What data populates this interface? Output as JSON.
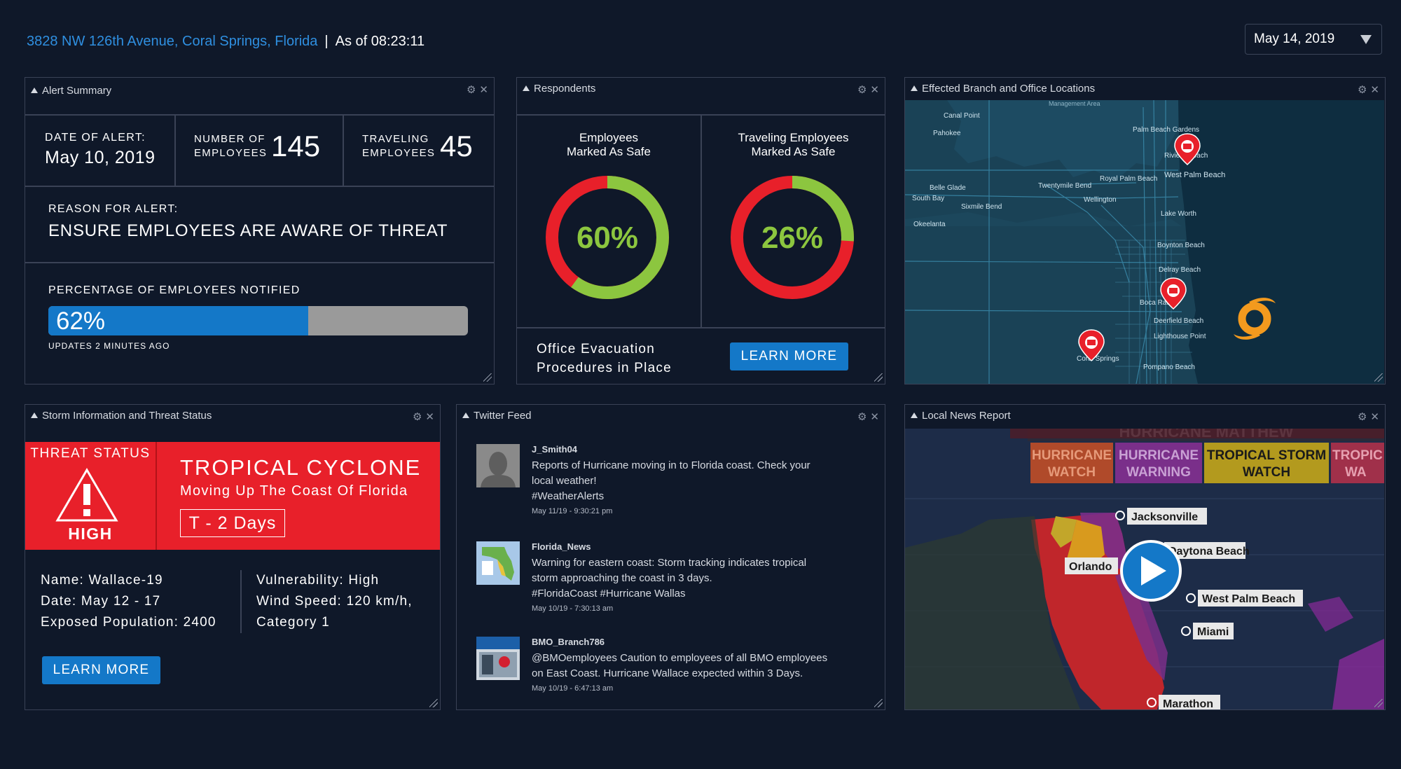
{
  "header": {
    "address": "3828 NW 126th Avenue, Coral Springs, Florida",
    "separator": "|",
    "as_of": "As of 08:23:11",
    "date_value": "May 14, 2019"
  },
  "alert_summary": {
    "title": "Alert Summary",
    "date_label": "DATE OF ALERT:",
    "date_value": "May 10, 2019",
    "employees_label_1": "NUMBER OF",
    "employees_label_2": "EMPLOYEES",
    "employees_value": "145",
    "traveling_label_1": "TRAVELING",
    "traveling_label_2": "EMPLOYEES",
    "traveling_value": "45",
    "reason_label": "REASON FOR ALERT:",
    "reason_value": "ENSURE EMPLOYEES ARE AWARE OF THREAT",
    "notified_label": "PERCENTAGE OF EMPLOYEES NOTIFIED",
    "notified_text": "62%",
    "notified_fraction": 0.62,
    "updated_text": "UPDATES 2 MINUTES AGO"
  },
  "respondents": {
    "title": "Respondents",
    "left_label_1": "Employees",
    "left_label_2": "Marked As Safe",
    "left_text": "60%",
    "left_fraction": 0.6,
    "right_label_1": "Traveling Employees",
    "right_label_2": "Marked As Safe",
    "right_text": "26%",
    "right_fraction": 0.26,
    "procedures_1": "Office Evacuation",
    "procedures_2": "Procedures in Place",
    "learn_more": "LEARN MORE"
  },
  "map_panel": {
    "title": "Effected Branch and Office Locations",
    "places": [
      "Canal Point",
      "Pahokee",
      "Palm Beach Gardens",
      "Riviera Beach",
      "West Palm Beach",
      "Royal Palm Beach",
      "Belle Glade",
      "Twentymile Bend",
      "Wellington",
      "South Bay",
      "Sixmile Bend",
      "Lake Worth",
      "Okeelanta",
      "Boynton Beach",
      "Delray Beach",
      "Boca Raton",
      "Deerfield Beach",
      "Lighthouse Point",
      "Coral Springs",
      "Pompano Beach",
      "Management Area"
    ]
  },
  "storm": {
    "title": "Storm Information and Threat Status",
    "threat_status": "THREAT STATUS",
    "level": "HIGH",
    "type": "TROPICAL CYCLONE",
    "subtitle": "Moving Up The Coast Of Florida",
    "countdown": "T - 2 Days",
    "name": "Name: Wallace-19",
    "date": "Date: May 12 - 17",
    "population": "Exposed Population: 2400",
    "vulnerability": "Vulnerability: High",
    "wind": "Wind Speed: 120 km/h,",
    "category": "Category 1",
    "learn_more": "LEARN MORE"
  },
  "twitter": {
    "title": "Twitter Feed",
    "tweets": [
      {
        "user": "J_Smith04",
        "line1": "Reports of Hurricane moving in to Florida coast. Check your",
        "line2": "local weather!",
        "line3": "#WeatherAlerts",
        "time": "May 11/19 - 9:30:21 pm"
      },
      {
        "user": "Florida_News",
        "line1": "Warning for eastern coast: Storm tracking indicates tropical",
        "line2": "storm approaching the coast in 3 days.",
        "line3": "#FloridaCoast #Hurricane Wallas",
        "time": "May 10/19 - 7:30:13 am"
      },
      {
        "user": "BMO_Branch786",
        "line1": "@BMOemployees Caution to employees of all BMO employees",
        "line2": "on East Coast. Hurricane Wallace expected within 3 Days.",
        "line3": "",
        "time": "May 10/19 - 6:47:13 am"
      }
    ]
  },
  "news": {
    "title": "Local News Report",
    "banner": "HURRICANE MATTHEW",
    "legend": [
      {
        "line1": "HURRICANE",
        "line2": "WATCH",
        "color": "#b04a2a",
        "text_color": "#e69a7a"
      },
      {
        "line1": "HURRICANE",
        "line2": "WARNING",
        "color": "#7a2f8a",
        "text_color": "#c9a1d4"
      },
      {
        "line1": "TROPICAL STORM",
        "line2": "WATCH",
        "color": "#b39a1e",
        "text_color": "#1a1a1a"
      },
      {
        "line1": "TROPIC",
        "line2": "WA",
        "color": "#a0304a",
        "text_color": "#e6a0b0"
      }
    ],
    "cities": [
      "Jacksonville",
      "Orlando",
      "Daytona Beach",
      "West Palm Beach",
      "Miami",
      "Marathon"
    ]
  },
  "colors": {
    "accent": "#1478c8",
    "safe": "#8cc63f",
    "unsafe": "#e8202a",
    "threat_red": "#e8202a"
  }
}
